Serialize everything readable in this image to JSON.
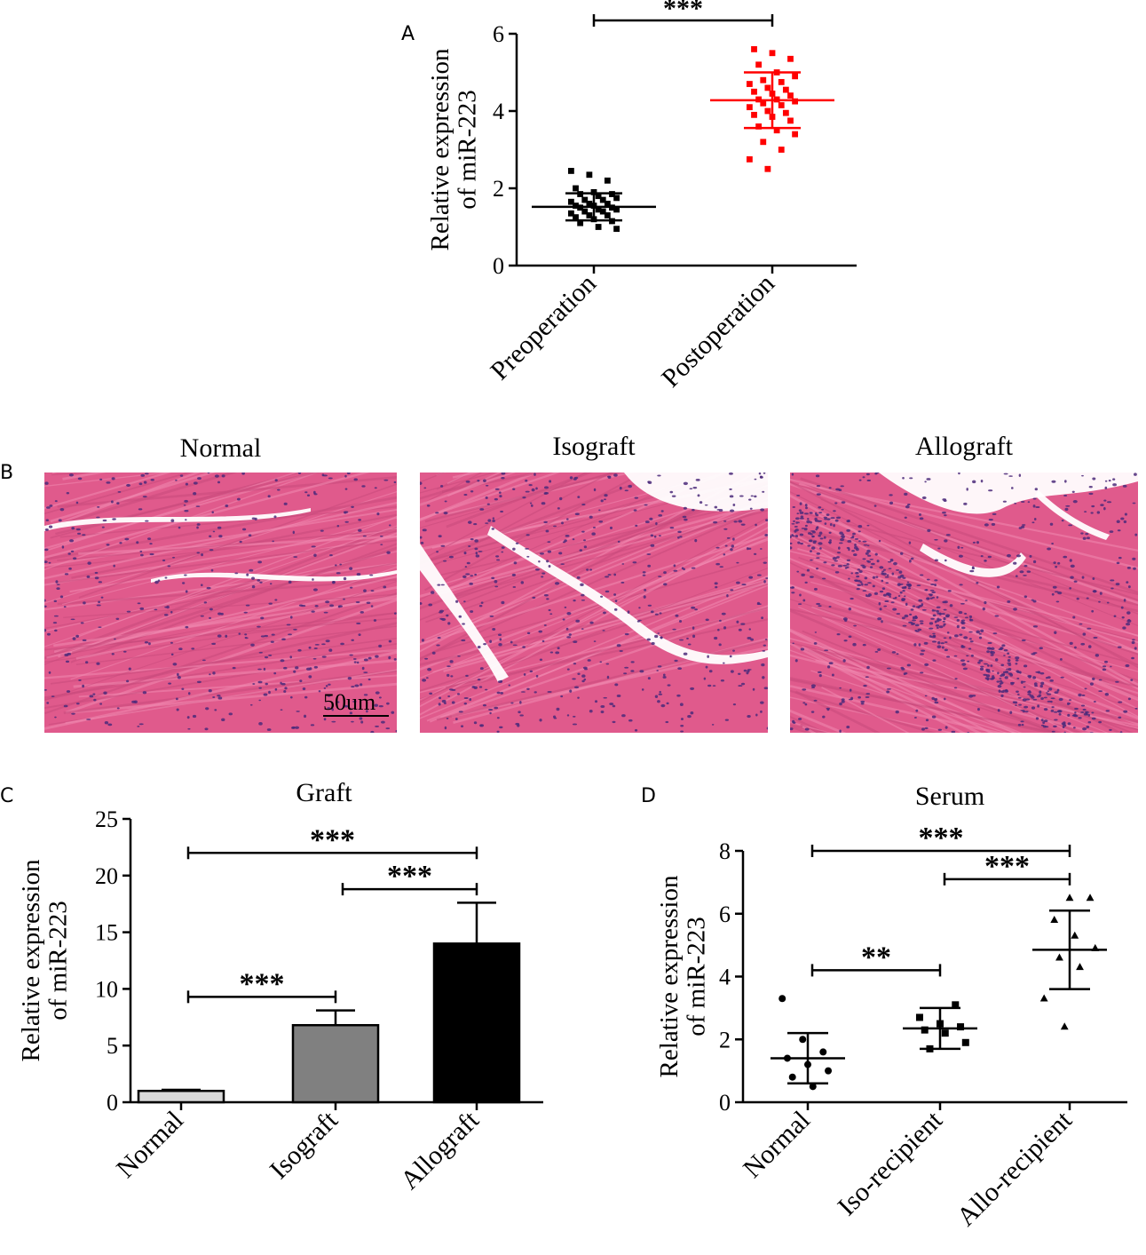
{
  "panels": {
    "a": {
      "letter": "A"
    },
    "b": {
      "letter": "B",
      "images": [
        {
          "title": "Normal"
        },
        {
          "title": "Isograft"
        },
        {
          "title": "Allograft"
        }
      ],
      "scale_bar": "50um"
    },
    "c": {
      "letter": "C",
      "title": "Graft"
    },
    "d": {
      "letter": "D",
      "title": "Serum"
    }
  },
  "colors": {
    "preoperation": "#000000",
    "postoperation": "#ff0000",
    "normal_bar": "#d9d9d9",
    "isograft_bar": "#808080",
    "allograft_bar": "#000000",
    "tissue_base": "#e05a8c",
    "tissue_nuclei": "#4b2a7a"
  },
  "chart_data": [
    {
      "panel": "A",
      "type": "scatter",
      "title": "",
      "xlabel": "",
      "ylabel": "Relative expression of miR-223",
      "ylabel_lines": [
        "Relative expression",
        "of miR-223"
      ],
      "categories": [
        "Preoperation",
        "Postoperation"
      ],
      "ylim": [
        0,
        6
      ],
      "yticks": [
        0,
        2,
        4,
        6
      ],
      "series": [
        {
          "values": [
            2.45,
            2.35,
            2.2,
            2.0,
            1.9,
            1.85,
            1.85,
            1.8,
            1.75,
            1.7,
            1.7,
            1.65,
            1.6,
            1.6,
            1.55,
            1.55,
            1.5,
            1.5,
            1.45,
            1.45,
            1.4,
            1.4,
            1.35,
            1.3,
            1.3,
            1.25,
            1.2,
            1.15,
            1.1,
            1.0,
            0.95
          ],
          "mean": 1.52,
          "sd": 0.35
        },
        {
          "values": [
            5.6,
            5.5,
            5.35,
            5.2,
            5.0,
            4.9,
            4.8,
            4.75,
            4.7,
            4.6,
            4.55,
            4.5,
            4.45,
            4.4,
            4.3,
            4.3,
            4.25,
            4.2,
            4.15,
            4.1,
            4.0,
            3.95,
            3.9,
            3.85,
            3.75,
            3.6,
            3.5,
            3.4,
            3.2,
            3.0,
            2.75,
            2.5
          ],
          "mean": 4.28,
          "sd": 0.72
        }
      ],
      "significance": [
        {
          "from": 0,
          "to": 1,
          "label": "***"
        }
      ]
    },
    {
      "panel": "C",
      "type": "bar",
      "title": "Graft",
      "xlabel": "",
      "ylabel": "Relative expression of miR-223",
      "ylabel_lines": [
        "Relative expression",
        "of miR-223"
      ],
      "categories": [
        "Normal",
        "Isograft",
        "Allograft"
      ],
      "values": [
        1.0,
        6.8,
        14.0
      ],
      "errors": [
        0.1,
        1.3,
        3.6
      ],
      "ylim": [
        0,
        25
      ],
      "yticks": [
        0,
        5,
        10,
        15,
        20,
        25
      ],
      "significance": [
        {
          "from": 0,
          "to": 2,
          "label": "***",
          "y": 22
        },
        {
          "from": 1,
          "to": 2,
          "label": "***",
          "y": 18.8
        },
        {
          "from": 0,
          "to": 1,
          "label": "***",
          "y": 9.3
        }
      ]
    },
    {
      "panel": "D",
      "type": "scatter",
      "title": "Serum",
      "xlabel": "",
      "ylabel": "Relative expression of miR-223",
      "ylabel_lines": [
        "Relative expression",
        "of miR-223"
      ],
      "categories": [
        "Normal",
        "Iso-recipient",
        "Allo-recipient"
      ],
      "ylim": [
        0,
        8
      ],
      "yticks": [
        0,
        2,
        4,
        6,
        8
      ],
      "series": [
        {
          "values": [
            3.3,
            2.0,
            1.6,
            1.4,
            1.2,
            1.0,
            0.8,
            0.5
          ],
          "mean": 1.4,
          "sd": 0.8,
          "marker": "circle"
        },
        {
          "values": [
            3.1,
            2.7,
            2.5,
            2.4,
            2.3,
            2.2,
            1.9,
            1.7
          ],
          "mean": 2.35,
          "sd": 0.65,
          "marker": "square"
        },
        {
          "values": [
            6.5,
            6.5,
            5.8,
            5.3,
            4.9,
            4.6,
            4.3,
            3.3,
            2.4
          ],
          "mean": 4.85,
          "sd": 1.25,
          "marker": "triangle"
        }
      ],
      "significance": [
        {
          "from": 0,
          "to": 2,
          "label": "***",
          "y": 8.0
        },
        {
          "from": 1,
          "to": 2,
          "label": "***",
          "y": 7.1
        },
        {
          "from": 0,
          "to": 1,
          "label": "**",
          "y": 4.2
        }
      ]
    }
  ]
}
